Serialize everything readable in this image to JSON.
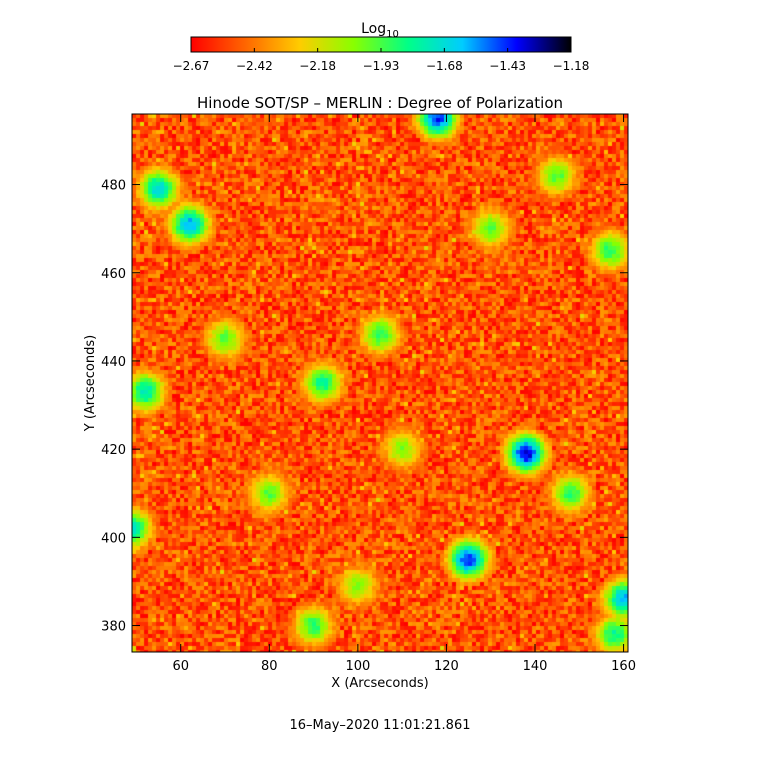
{
  "chart_data": {
    "type": "heatmap",
    "title": "Hinode SOT/SP – MERLIN : Degree of Polarization",
    "xlabel": "X (Arcseconds)",
    "ylabel": "Y (Arcseconds)",
    "xlim": [
      49,
      161
    ],
    "ylim": [
      374,
      496
    ],
    "x_ticks": [
      60,
      80,
      100,
      120,
      140,
      160
    ],
    "y_ticks": [
      380,
      400,
      420,
      440,
      460,
      480
    ],
    "colorbar": {
      "title_base": "Log",
      "title_sub": "10",
      "range": [
        -2.67,
        -1.18
      ],
      "ticks": [
        "−2.67",
        "−2.42",
        "−2.18",
        "−1.93",
        "−1.68",
        "−1.43",
        "−1.18"
      ],
      "colormap": [
        "#ff0000",
        "#ff6600",
        "#ffcc00",
        "#88ff00",
        "#00ff88",
        "#00ccff",
        "#0000ff",
        "#000000"
      ]
    },
    "timestamp": "16–May–2020 11:01:21.861",
    "hotspots": [
      {
        "x": 138,
        "y": 419,
        "level": 0.85
      },
      {
        "x": 125,
        "y": 395,
        "level": 0.8
      },
      {
        "x": 62,
        "y": 471,
        "level": 0.7
      },
      {
        "x": 55,
        "y": 479,
        "level": 0.65
      },
      {
        "x": 52,
        "y": 433,
        "level": 0.6
      },
      {
        "x": 92,
        "y": 435,
        "level": 0.55
      },
      {
        "x": 105,
        "y": 446,
        "level": 0.5
      },
      {
        "x": 118,
        "y": 495,
        "level": 0.8
      },
      {
        "x": 160,
        "y": 386,
        "level": 0.7
      },
      {
        "x": 158,
        "y": 378,
        "level": 0.55
      },
      {
        "x": 49,
        "y": 402,
        "level": 0.6
      },
      {
        "x": 148,
        "y": 410,
        "level": 0.5
      },
      {
        "x": 70,
        "y": 445,
        "level": 0.45
      },
      {
        "x": 130,
        "y": 470,
        "level": 0.45
      },
      {
        "x": 90,
        "y": 380,
        "level": 0.5
      },
      {
        "x": 157,
        "y": 465,
        "level": 0.5
      },
      {
        "x": 80,
        "y": 410,
        "level": 0.45
      },
      {
        "x": 110,
        "y": 420,
        "level": 0.4
      },
      {
        "x": 145,
        "y": 482,
        "level": 0.45
      },
      {
        "x": 100,
        "y": 389,
        "level": 0.4
      }
    ]
  }
}
